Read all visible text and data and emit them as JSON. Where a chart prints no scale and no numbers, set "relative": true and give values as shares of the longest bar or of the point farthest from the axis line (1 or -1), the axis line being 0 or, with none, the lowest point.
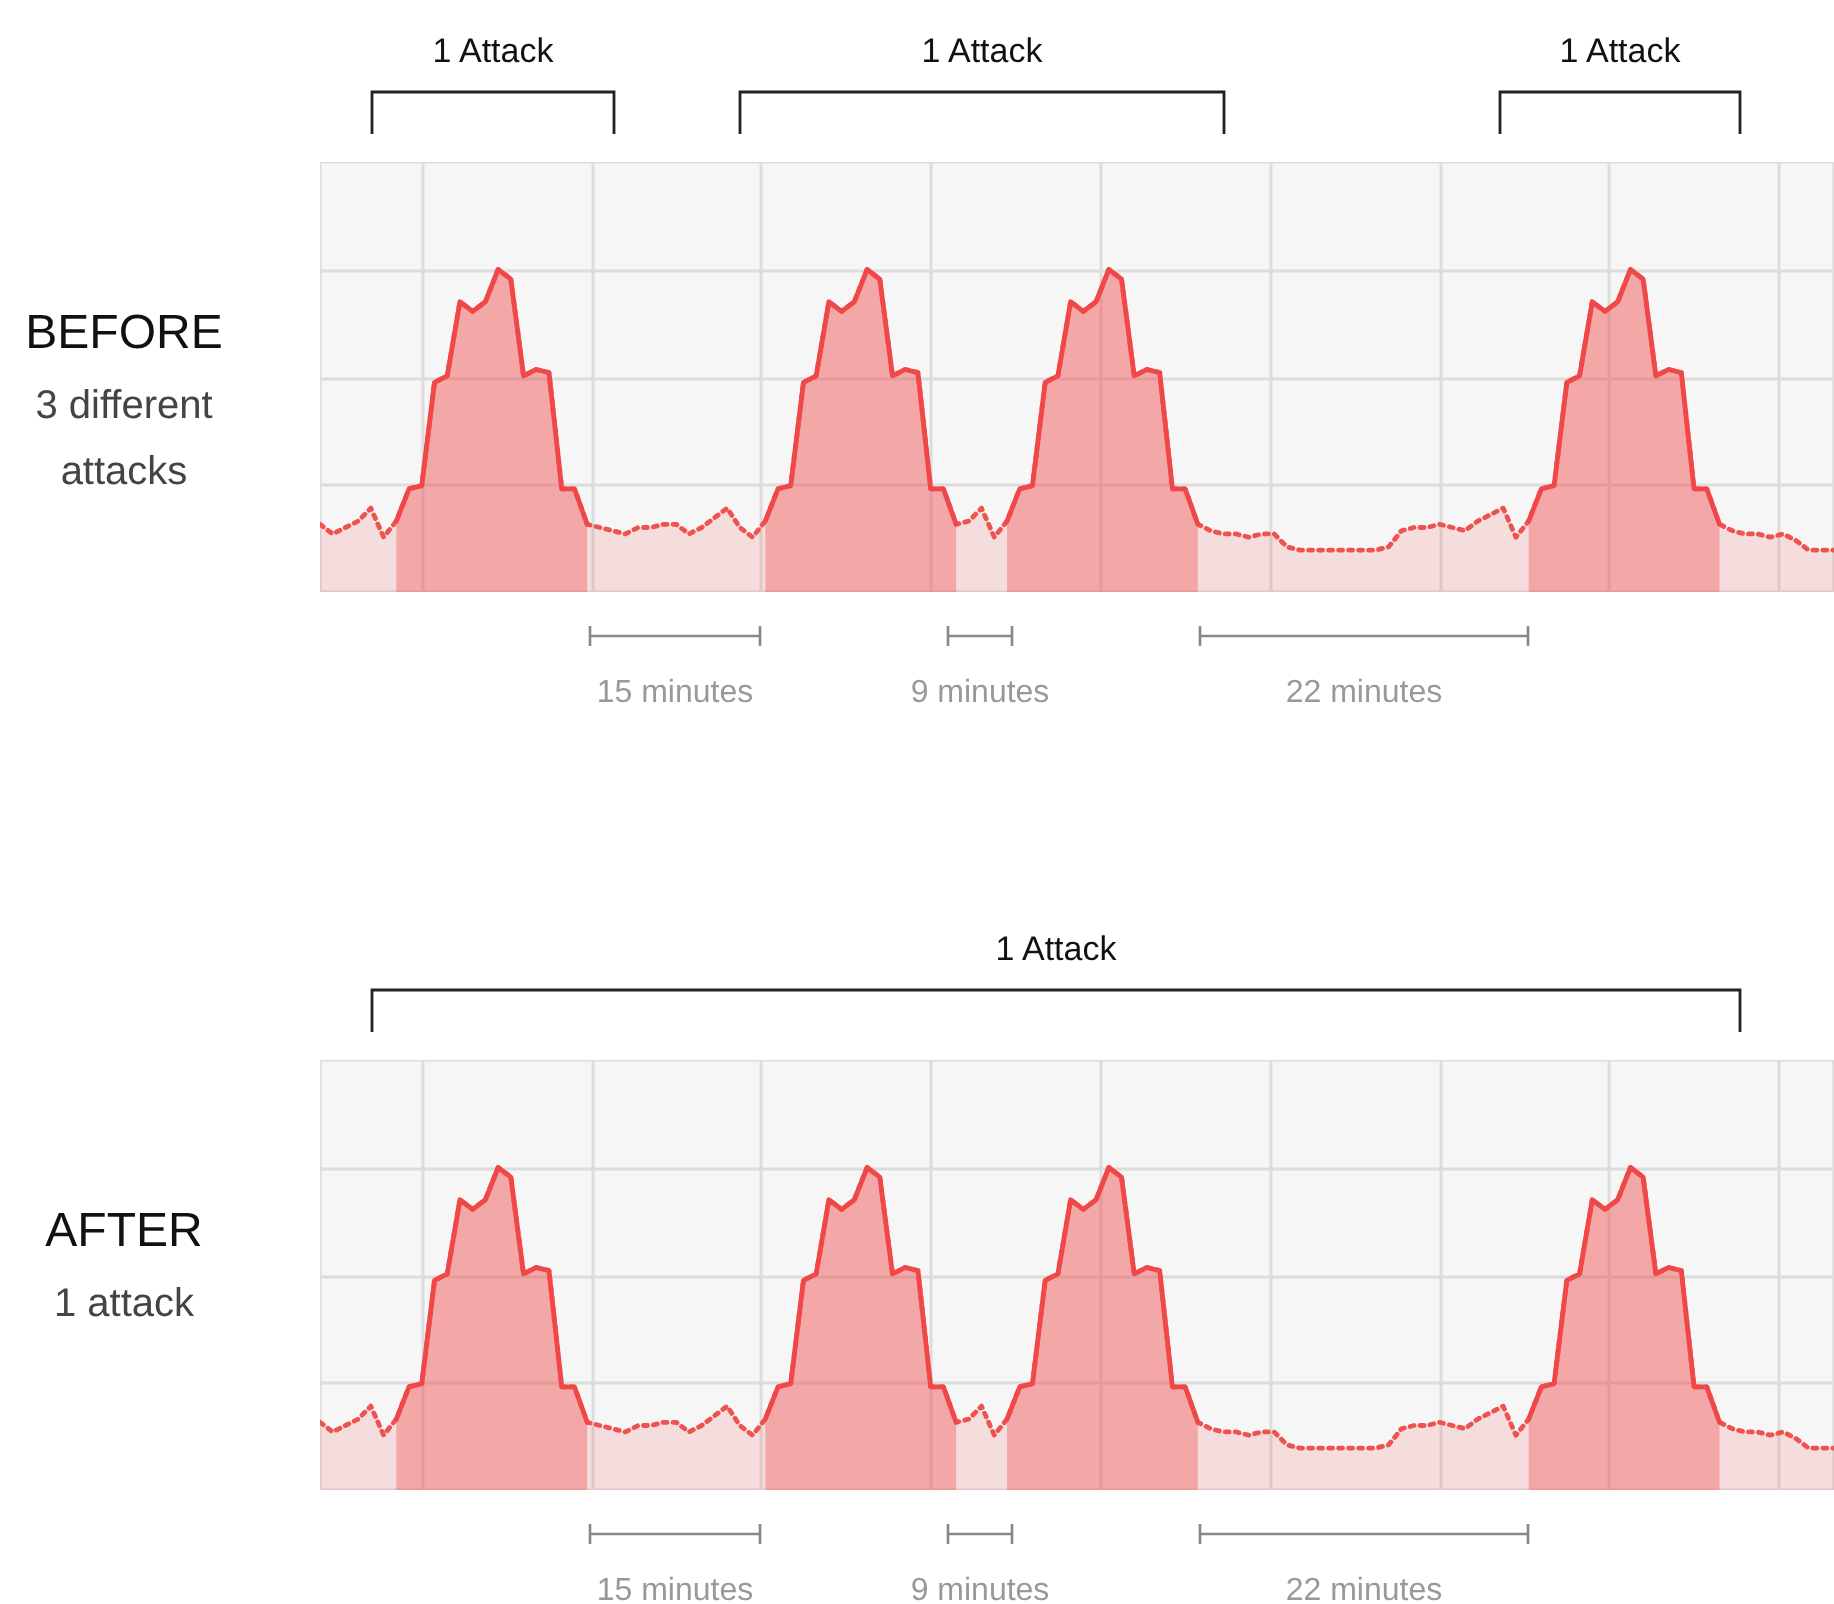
{
  "chart_data": [
    {
      "type": "area",
      "title": "BEFORE",
      "subtitle": "3 different attacks",
      "relative": true,
      "grid": true,
      "categories": [
        null,
        null,
        null,
        null,
        null,
        null,
        null,
        null,
        null,
        null,
        null,
        null,
        null,
        null,
        null,
        null,
        null,
        null,
        null,
        null,
        null,
        null,
        null,
        null,
        null,
        null,
        null,
        null,
        null,
        null,
        null,
        null,
        null,
        null,
        null,
        null,
        null,
        null,
        null,
        null,
        null,
        null,
        null,
        null,
        null,
        null,
        null,
        null,
        null,
        null,
        null,
        null,
        null,
        null,
        null,
        null,
        null,
        null,
        null,
        null,
        null,
        null,
        null,
        null,
        null,
        null,
        null,
        null,
        null,
        null,
        null,
        null,
        null,
        null,
        null,
        null,
        null,
        null,
        null,
        null,
        null,
        null,
        null,
        null,
        null,
        null,
        null,
        null,
        null,
        null,
        null,
        null,
        null,
        null,
        null,
        null,
        null,
        null,
        null,
        null,
        null,
        null,
        null,
        null,
        null,
        null,
        null,
        null,
        null,
        null,
        null,
        null,
        null,
        null,
        null,
        null,
        null,
        null,
        null,
        null
      ],
      "series": [
        {
          "color": "#ef5350",
          "line_style": "dotted",
          "values": [
            0.21,
            0.18,
            0.2,
            0.22,
            0.26,
            0.17,
            0.22,
            0.32,
            0.33,
            0.65,
            0.67,
            0.9,
            0.87,
            0.9,
            1,
            0.97,
            0.67,
            0.69,
            0.68,
            0.32,
            0.32,
            0.21,
            0.2,
            0.19,
            0.18,
            0.2,
            0.2,
            0.21,
            0.21,
            0.18,
            0.2,
            0.23,
            0.26,
            0.2,
            0.17,
            0.22,
            0.32,
            0.33,
            0.65,
            0.67,
            0.9,
            0.87,
            0.9,
            1,
            0.97,
            0.67,
            0.69,
            0.68,
            0.32,
            0.32,
            0.21,
            0.22,
            0.26,
            0.17,
            0.22,
            0.32,
            0.33,
            0.65,
            0.67,
            0.9,
            0.87,
            0.9,
            1,
            0.97,
            0.67,
            0.69,
            0.68,
            0.32,
            0.32,
            0.21,
            0.19,
            0.18,
            0.18,
            0.17,
            0.18,
            0.18,
            0.14,
            0.13,
            0.13,
            0.13,
            0.13,
            0.13,
            0.13,
            0.13,
            0.14,
            0.19,
            0.2,
            0.2,
            0.21,
            0.2,
            0.19,
            0.22,
            0.24,
            0.26,
            0.17,
            0.22,
            0.32,
            0.33,
            0.65,
            0.67,
            0.9,
            0.87,
            0.9,
            1,
            0.97,
            0.67,
            0.69,
            0.68,
            0.32,
            0.32,
            0.21,
            0.19,
            0.18,
            0.18,
            0.17,
            0.18,
            0.16,
            0.13,
            0.13,
            0.13
          ]
        },
        {
          "color": "#f04848",
          "line_style": "solid",
          "values": [
            null,
            null,
            null,
            null,
            null,
            null,
            0.22,
            0.32,
            0.33,
            0.65,
            0.67,
            0.9,
            0.87,
            0.9,
            1,
            0.97,
            0.67,
            0.69,
            0.68,
            0.32,
            0.32,
            0.21,
            null,
            null,
            null,
            null,
            null,
            null,
            null,
            null,
            null,
            null,
            null,
            null,
            null,
            0.22,
            0.32,
            0.33,
            0.65,
            0.67,
            0.9,
            0.87,
            0.9,
            1,
            0.97,
            0.67,
            0.69,
            0.68,
            0.32,
            0.32,
            0.21,
            null,
            null,
            null,
            0.22,
            0.32,
            0.33,
            0.65,
            0.67,
            0.9,
            0.87,
            0.9,
            1,
            0.97,
            0.67,
            0.69,
            0.68,
            0.32,
            0.32,
            0.21,
            null,
            null,
            null,
            null,
            null,
            null,
            null,
            null,
            null,
            null,
            null,
            null,
            null,
            null,
            null,
            null,
            null,
            null,
            null,
            null,
            null,
            null,
            null,
            null,
            null,
            0.22,
            0.32,
            0.33,
            0.65,
            0.67,
            0.9,
            0.87,
            0.9,
            1,
            0.97,
            0.67,
            0.69,
            0.68,
            0.32,
            0.32,
            0.21,
            null,
            null,
            null,
            null,
            null,
            null,
            null,
            null,
            null
          ]
        }
      ],
      "annotations": [
        "1 Attack",
        "1 Attack",
        "1 Attack",
        "15 minutes",
        "9 minutes",
        "22 minutes"
      ]
    },
    {
      "type": "area",
      "title": "AFTER",
      "subtitle": "1 attack",
      "relative": true,
      "grid": true,
      "categories": [
        null,
        null,
        null,
        null,
        null,
        null,
        null,
        null,
        null,
        null,
        null,
        null,
        null,
        null,
        null,
        null,
        null,
        null,
        null,
        null,
        null,
        null,
        null,
        null,
        null,
        null,
        null,
        null,
        null,
        null,
        null,
        null,
        null,
        null,
        null,
        null,
        null,
        null,
        null,
        null,
        null,
        null,
        null,
        null,
        null,
        null,
        null,
        null,
        null,
        null,
        null,
        null,
        null,
        null,
        null,
        null,
        null,
        null,
        null,
        null,
        null,
        null,
        null,
        null,
        null,
        null,
        null,
        null,
        null,
        null,
        null,
        null,
        null,
        null,
        null,
        null,
        null,
        null,
        null,
        null,
        null,
        null,
        null,
        null,
        null,
        null,
        null,
        null,
        null,
        null,
        null,
        null,
        null,
        null,
        null,
        null,
        null,
        null,
        null,
        null,
        null,
        null,
        null,
        null,
        null,
        null,
        null,
        null,
        null,
        null,
        null,
        null,
        null,
        null,
        null,
        null,
        null,
        null,
        null,
        null
      ],
      "series": [
        {
          "color": "#ef5350",
          "line_style": "dotted",
          "values": [
            0.21,
            0.18,
            0.2,
            0.22,
            0.26,
            0.17,
            0.22,
            0.32,
            0.33,
            0.65,
            0.67,
            0.9,
            0.87,
            0.9,
            1,
            0.97,
            0.67,
            0.69,
            0.68,
            0.32,
            0.32,
            0.21,
            0.2,
            0.19,
            0.18,
            0.2,
            0.2,
            0.21,
            0.21,
            0.18,
            0.2,
            0.23,
            0.26,
            0.2,
            0.17,
            0.22,
            0.32,
            0.33,
            0.65,
            0.67,
            0.9,
            0.87,
            0.9,
            1,
            0.97,
            0.67,
            0.69,
            0.68,
            0.32,
            0.32,
            0.21,
            0.22,
            0.26,
            0.17,
            0.22,
            0.32,
            0.33,
            0.65,
            0.67,
            0.9,
            0.87,
            0.9,
            1,
            0.97,
            0.67,
            0.69,
            0.68,
            0.32,
            0.32,
            0.21,
            0.19,
            0.18,
            0.18,
            0.17,
            0.18,
            0.18,
            0.14,
            0.13,
            0.13,
            0.13,
            0.13,
            0.13,
            0.13,
            0.13,
            0.14,
            0.19,
            0.2,
            0.2,
            0.21,
            0.2,
            0.19,
            0.22,
            0.24,
            0.26,
            0.17,
            0.22,
            0.32,
            0.33,
            0.65,
            0.67,
            0.9,
            0.87,
            0.9,
            1,
            0.97,
            0.67,
            0.69,
            0.68,
            0.32,
            0.32,
            0.21,
            0.19,
            0.18,
            0.18,
            0.17,
            0.18,
            0.16,
            0.13,
            0.13,
            0.13
          ]
        },
        {
          "color": "#f04848",
          "line_style": "solid",
          "values": [
            null,
            null,
            null,
            null,
            null,
            null,
            0.22,
            0.32,
            0.33,
            0.65,
            0.67,
            0.9,
            0.87,
            0.9,
            1,
            0.97,
            0.67,
            0.69,
            0.68,
            0.32,
            0.32,
            0.21,
            null,
            null,
            null,
            null,
            null,
            null,
            null,
            null,
            null,
            null,
            null,
            null,
            null,
            0.22,
            0.32,
            0.33,
            0.65,
            0.67,
            0.9,
            0.87,
            0.9,
            1,
            0.97,
            0.67,
            0.69,
            0.68,
            0.32,
            0.32,
            0.21,
            null,
            null,
            null,
            0.22,
            0.32,
            0.33,
            0.65,
            0.67,
            0.9,
            0.87,
            0.9,
            1,
            0.97,
            0.67,
            0.69,
            0.68,
            0.32,
            0.32,
            0.21,
            null,
            null,
            null,
            null,
            null,
            null,
            null,
            null,
            null,
            null,
            null,
            null,
            null,
            null,
            null,
            null,
            null,
            null,
            null,
            null,
            null,
            null,
            null,
            null,
            null,
            0.22,
            0.32,
            0.33,
            0.65,
            0.67,
            0.9,
            0.87,
            0.9,
            1,
            0.97,
            0.67,
            0.69,
            0.68,
            0.32,
            0.32,
            0.21,
            null,
            null,
            null,
            null,
            null,
            null,
            null,
            null,
            null
          ]
        }
      ],
      "annotations": [
        "1 Attack",
        "15 minutes",
        "9 minutes",
        "22 minutes"
      ]
    }
  ]
}
